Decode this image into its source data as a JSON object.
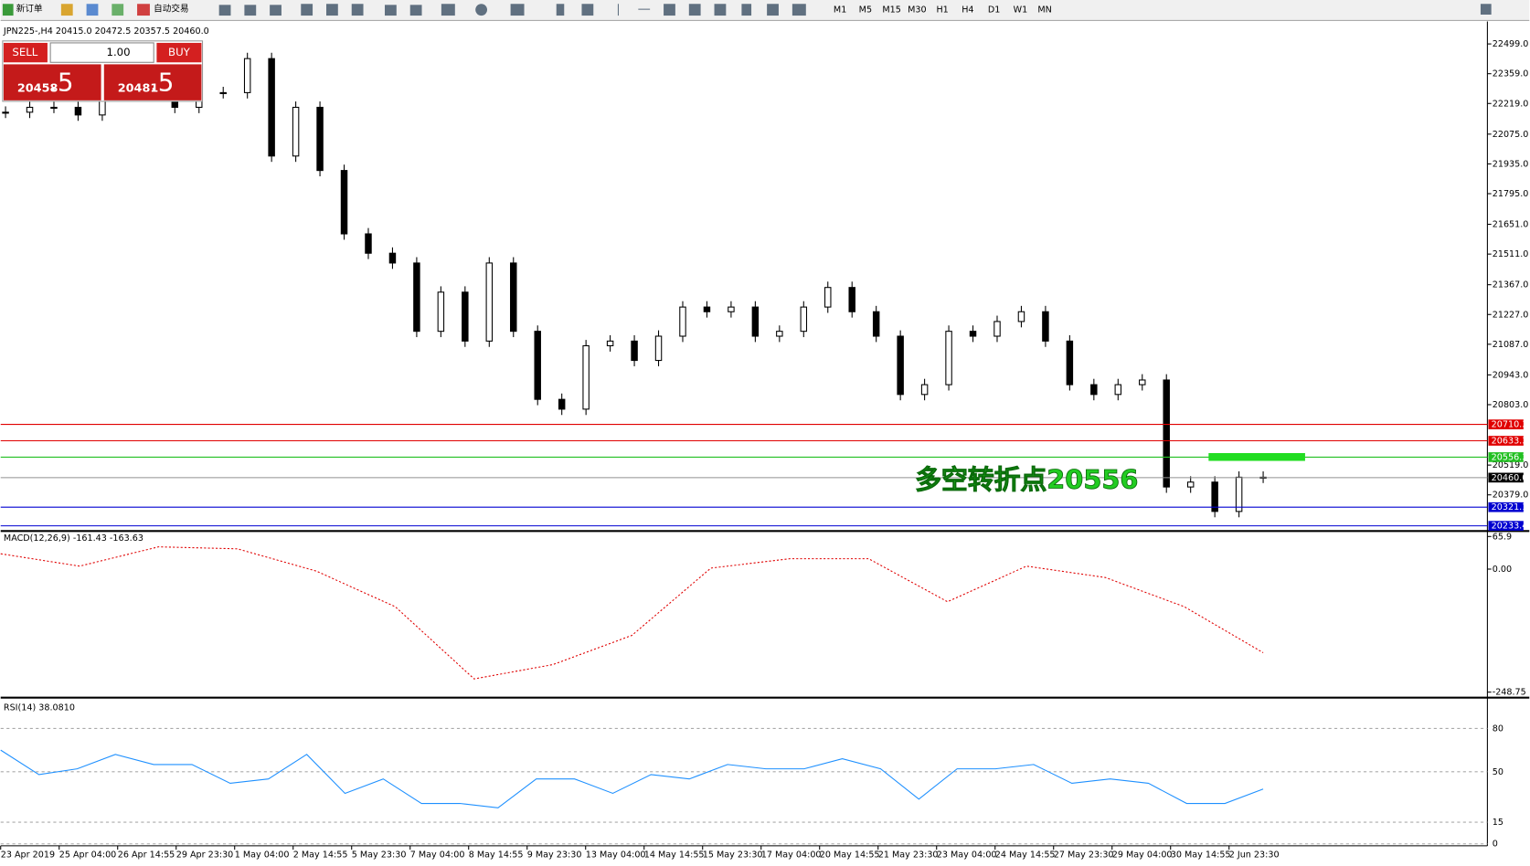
{
  "toolbar": {
    "new_order": "新订单",
    "auto_trading": "自动交易",
    "timeframes": [
      "M1",
      "M5",
      "M15",
      "M30",
      "H1",
      "H4",
      "D1",
      "W1",
      "MN"
    ]
  },
  "trade_panel": {
    "sell": "SELL",
    "buy": "BUY",
    "lots": "1.00",
    "bid_main": "20458",
    "bid_frac": ".5",
    "ask_main": "20481",
    "ask_frac": ".5"
  },
  "chart": {
    "header": "JPN225-,H4  20415.0 20472.5 20357.5 20460.0",
    "ylim": [
      20218,
      22591
    ],
    "yticks": [
      {
        "value": 22499,
        "label": "22499.0"
      },
      {
        "value": 22359,
        "label": "22359.0"
      },
      {
        "value": 22219,
        "label": "22219.0"
      },
      {
        "value": 22075,
        "label": "22075.0"
      },
      {
        "value": 21935,
        "label": "21935.0"
      },
      {
        "value": 21795,
        "label": "21795.0"
      },
      {
        "value": 21651,
        "label": "21651.0"
      },
      {
        "value": 21511,
        "label": "21511.0"
      },
      {
        "value": 21367,
        "label": "21367.0"
      },
      {
        "value": 21227,
        "label": "21227.0"
      },
      {
        "value": 21087,
        "label": "21087.0"
      },
      {
        "value": 20943,
        "label": "20943.0"
      },
      {
        "value": 20803,
        "label": "20803.0"
      },
      {
        "value": 20519,
        "label": "20519.0"
      },
      {
        "value": 20379,
        "label": "20379.0"
      }
    ],
    "close": [
      22178,
      22201,
      22201,
      22165,
      22316,
      22385,
      22407,
      22201,
      22270,
      22270,
      22430,
      21972,
      22201,
      21904,
      21606,
      21515,
      21469,
      21148,
      21332,
      21102,
      21469,
      21148,
      20828,
      20782,
      21080,
      21102,
      21011,
      21125,
      21262,
      21240,
      21262,
      21125,
      21148,
      21262,
      21354,
      21240,
      21125,
      20851,
      20897,
      21148,
      21125,
      21194,
      21240,
      21102,
      20897,
      20851,
      20897,
      20919,
      20416,
      20439,
      20301,
      20462,
      20462
    ],
    "levels": [
      {
        "value": 20710.3,
        "color": "#e00000"
      },
      {
        "value": 20633.3,
        "color": "#e00000"
      },
      {
        "value": 20556.3,
        "color": "#22c022"
      },
      {
        "value": 20460,
        "label": "20460.0",
        "color": "#909090"
      },
      {
        "value": 20321.1,
        "color": "#0000d0"
      },
      {
        "value": 20233.4,
        "color": "#0000d0"
      }
    ],
    "annotation": "多空转折点20556"
  },
  "macd": {
    "header": "MACD(12,26,9) -161.43 -163.63",
    "ylim": [
      -256,
      73
    ],
    "yticks": [
      65.9,
      {
        "value": 0,
        "label": "0.00"
      },
      -248.75
    ],
    "signal": [
      31,
      6,
      45,
      41,
      -4,
      -76,
      -222,
      -193,
      -134,
      2,
      21,
      21,
      -66,
      6,
      -17,
      -76,
      -169
    ]
  },
  "rsi": {
    "header": "RSI(14) 38.0810",
    "ylim": [
      0,
      100
    ],
    "yticks": [
      80,
      50,
      15,
      0
    ],
    "values": [
      65,
      48,
      52,
      62,
      55,
      55,
      42,
      45,
      62,
      35,
      45,
      28,
      28,
      25,
      45,
      45,
      35,
      48,
      45,
      55,
      52,
      52,
      59,
      52,
      31,
      52,
      52,
      55,
      42,
      45,
      42,
      28,
      28,
      38
    ]
  },
  "dates": [
    "23 Apr 2019",
    "25 Apr 04:00",
    "26 Apr 14:55",
    "29 Apr 23:30",
    "1 May 04:00",
    "2 May 14:55",
    "5 May 23:30",
    "7 May 04:00",
    "8 May 14:55",
    "9 May 23:30",
    "13 May 04:00",
    "14 May 14:55",
    "15 May 23:30",
    "17 May 04:00",
    "20 May 14:55",
    "21 May 23:30",
    "23 May 04:00",
    "24 May 14:55",
    "27 May 23:30",
    "29 May 04:00",
    "30 May 14:55",
    "2 Jun 23:30"
  ]
}
